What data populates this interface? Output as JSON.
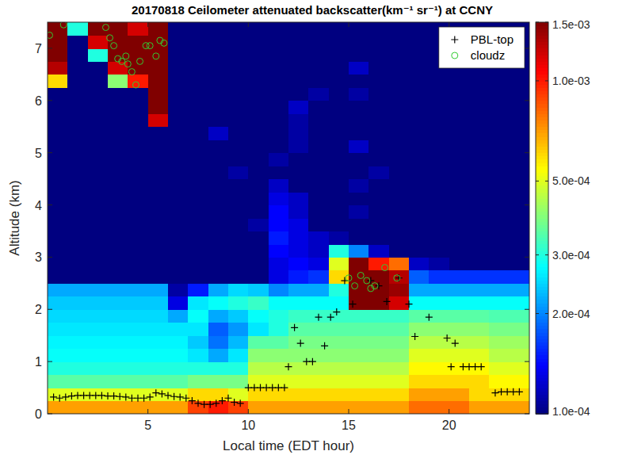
{
  "chart_data": {
    "type": "heatmap",
    "title": "20170818 Ceilometer attenuated backscatter(km⁻¹ sr⁻¹) at CCNY",
    "x_label": "Local time  (EDT hour)",
    "y_label": "Altitude (km)",
    "xlim": [
      0,
      24
    ],
    "ylim": [
      0,
      7.5
    ],
    "xticks": [
      5,
      10,
      15,
      20
    ],
    "yticks": [
      0,
      1,
      2,
      3,
      4,
      5,
      6,
      7
    ],
    "legend": "northeast",
    "x": [
      0.5,
      1.5,
      2.5,
      3.5,
      4.5,
      5.5,
      6.5,
      7.5,
      8.5,
      9.5,
      10.5,
      11.5,
      12.5,
      13.5,
      14.5,
      15.5,
      16.5,
      17.5,
      18.5,
      19.5,
      20.5,
      21.5,
      22.5,
      23.5
    ],
    "y": [
      0.125,
      0.375,
      0.625,
      0.875,
      1.125,
      1.375,
      1.625,
      1.875,
      2.125,
      2.375,
      2.625,
      2.875,
      3.125,
      3.375,
      3.625,
      3.875,
      4.125,
      4.375,
      4.625,
      4.875,
      5.125,
      5.375,
      5.625,
      5.875,
      6.125,
      6.375,
      6.625,
      6.875,
      7.125,
      7.375
    ],
    "color_range": [
      0.0001,
      0.0015
    ],
    "color_ticks": [
      {
        "value": 0.0001,
        "label": "1.0e-04"
      },
      {
        "value": 0.0002,
        "label": "2.0e-04"
      },
      {
        "value": 0.0003,
        "label": "3.0e-04"
      },
      {
        "value": 0.0005,
        "label": "5.0e-04"
      },
      {
        "value": 0.001,
        "label": "1.0e-03"
      },
      {
        "value": 0.0015,
        "label": "1.5e-03"
      }
    ],
    "cells": [
      [
        0.0007,
        0.0007,
        0.0007,
        0.0007,
        0.0007,
        0.0007,
        0.0007,
        0.0009,
        0.001,
        0.0009,
        0.0007,
        0.0007,
        0.0007,
        0.0007,
        0.0007,
        0.0007,
        0.0007,
        0.0007,
        0.0008,
        0.0008,
        0.0008,
        0.0007,
        0.0007,
        0.0007
      ],
      [
        0.0005,
        0.0005,
        0.0005,
        0.0005,
        0.0005,
        0.0005,
        0.0005,
        0.0006,
        0.0006,
        0.0005,
        0.0006,
        0.0006,
        0.0006,
        0.0006,
        0.0006,
        0.0006,
        0.0006,
        0.0006,
        0.0007,
        0.0007,
        0.0007,
        0.0006,
        0.0006,
        0.0006
      ],
      [
        0.00035,
        0.00035,
        0.00035,
        0.00035,
        0.00035,
        0.00035,
        0.00035,
        0.00038,
        0.00038,
        0.00038,
        0.0005,
        0.0005,
        0.0005,
        0.0005,
        0.0005,
        0.0005,
        0.0005,
        0.0005,
        0.0006,
        0.0006,
        0.0006,
        0.0006,
        0.00055,
        0.00055
      ],
      [
        0.0003,
        0.0003,
        0.0003,
        0.0003,
        0.0003,
        0.0003,
        0.0003,
        0.0003,
        0.0003,
        0.0003,
        0.00045,
        0.00045,
        0.00045,
        0.00045,
        0.00045,
        0.00045,
        0.00045,
        0.00045,
        0.00055,
        0.00055,
        0.00055,
        0.00055,
        0.0005,
        0.0005
      ],
      [
        0.00028,
        0.00028,
        0.00028,
        0.00028,
        0.00028,
        0.00028,
        0.00028,
        0.00026,
        0.00022,
        0.00026,
        0.0004,
        0.0004,
        0.0004,
        0.0004,
        0.0004,
        0.0004,
        0.0004,
        0.0004,
        0.0005,
        0.0005,
        0.0005,
        0.0005,
        0.00045,
        0.00045
      ],
      [
        0.00027,
        0.00027,
        0.00027,
        0.00027,
        0.00027,
        0.00027,
        0.00027,
        0.00024,
        0.00019,
        0.00023,
        0.00035,
        0.00035,
        0.00038,
        0.00038,
        0.00038,
        0.00038,
        0.00038,
        0.00038,
        0.00045,
        0.00045,
        0.00045,
        0.00045,
        0.00042,
        0.00042
      ],
      [
        0.00026,
        0.00026,
        0.00026,
        0.00026,
        0.00026,
        0.00026,
        0.00026,
        0.00026,
        0.00018,
        0.00021,
        0.00026,
        0.0003,
        0.00035,
        0.00035,
        0.00035,
        0.00035,
        0.00035,
        0.00035,
        0.0004,
        0.0004,
        0.0004,
        0.0004,
        0.00038,
        0.00038
      ],
      [
        0.00025,
        0.00025,
        0.00025,
        0.00025,
        0.00025,
        0.00025,
        0.00022,
        0.00028,
        0.00022,
        0.00024,
        0.00028,
        0.0003,
        0.00032,
        0.00032,
        0.00032,
        0.00032,
        0.00032,
        0.00032,
        0.00035,
        0.00035,
        0.00035,
        0.00035,
        0.00034,
        0.00034
      ],
      [
        0.00024,
        0.00024,
        0.00024,
        0.00024,
        0.00024,
        0.00024,
        0.00013,
        0.00026,
        0.00028,
        0.0003,
        0.00032,
        0.00028,
        0.00028,
        0.00028,
        0.00028,
        0.0015,
        0.0015,
        0.0012,
        0.00028,
        0.00028,
        0.00028,
        0.00028,
        0.00028,
        0.00028
      ],
      [
        0.00022,
        0.00022,
        0.00022,
        0.00022,
        0.00022,
        0.00022,
        0.00011,
        0.00015,
        0.00022,
        0.00025,
        0.00024,
        0.0002,
        0.00022,
        0.00022,
        0.0003,
        0.0015,
        0.0015,
        0.0014,
        0.00022,
        0.00022,
        0.00022,
        0.00022,
        0.00022,
        0.00022
      ],
      [
        0.0001,
        0.0001,
        0.0001,
        0.0001,
        0.0001,
        0.0001,
        0.0001,
        0.0001,
        0.0001,
        0.0001,
        0.0001,
        0.00013,
        0.00015,
        0.00016,
        0.0006,
        0.0015,
        0.0015,
        0.0013,
        0.00018,
        0.00016,
        0.00016,
        0.00016,
        0.00016,
        0.00016
      ],
      [
        0.0001,
        0.0001,
        0.0001,
        0.0001,
        0.0001,
        0.0001,
        0.0001,
        0.0001,
        0.0001,
        0.0001,
        0.0001,
        0.00013,
        0.00014,
        0.00013,
        0.0005,
        0.0015,
        0.001,
        0.0008,
        0.00012,
        0.00011,
        0.0001,
        0.0001,
        0.0001,
        0.0001
      ],
      [
        0.0001,
        0.0001,
        0.0001,
        0.0001,
        0.0001,
        0.0001,
        0.0001,
        0.0001,
        0.0001,
        0.0001,
        0.0001,
        0.00014,
        0.00013,
        0.00012,
        0.0003,
        0.0002,
        0.00012,
        0.0001,
        0.0001,
        0.0001,
        0.0001,
        0.0001,
        0.0001,
        0.0001
      ],
      [
        0.0001,
        0.0001,
        0.0001,
        0.0001,
        0.0001,
        0.0001,
        0.0001,
        0.0001,
        0.0001,
        0.0001,
        0.0001,
        0.00015,
        0.00013,
        0.00012,
        0.00011,
        0.0001,
        0.0001,
        0.0001,
        0.0001,
        0.0001,
        0.0001,
        0.0001,
        0.0001,
        0.0001
      ],
      [
        0.0001,
        0.0001,
        0.0001,
        0.0001,
        0.0001,
        0.0001,
        0.0001,
        0.0001,
        0.0001,
        0.0001,
        0.00011,
        0.00014,
        0.00013,
        0.0001,
        0.0001,
        0.0001,
        0.0001,
        0.0001,
        0.0001,
        0.0001,
        0.0001,
        0.0001,
        0.0001,
        0.0001
      ],
      [
        0.0001,
        0.0001,
        0.0001,
        0.0001,
        0.0001,
        0.0001,
        0.0001,
        0.0001,
        0.0001,
        0.0001,
        0.0001,
        0.00014,
        0.00012,
        0.0001,
        0.0001,
        0.00011,
        0.0001,
        0.0001,
        0.0001,
        0.0001,
        0.0001,
        0.0001,
        0.0001,
        0.0001
      ],
      [
        0.0001,
        0.0001,
        0.0001,
        0.0001,
        0.0001,
        0.0001,
        0.0001,
        0.0001,
        0.0001,
        0.0001,
        0.0001,
        0.00013,
        0.00012,
        0.0001,
        0.0001,
        0.0001,
        0.0001,
        0.0001,
        0.0001,
        0.0001,
        0.0001,
        0.0001,
        0.0001,
        0.0001
      ],
      [
        0.0001,
        0.0001,
        0.0001,
        0.0001,
        0.0001,
        0.0001,
        0.0001,
        0.0001,
        0.0001,
        0.0001,
        0.0001,
        0.00012,
        0.0001,
        0.0001,
        0.0001,
        0.00011,
        0.0001,
        0.0001,
        0.0001,
        0.0001,
        0.0001,
        0.0001,
        0.0001,
        0.0001
      ],
      [
        0.0001,
        0.0001,
        0.0001,
        0.0001,
        0.0001,
        0.0001,
        0.0001,
        0.0001,
        0.0001,
        0.00011,
        0.0001,
        0.0001,
        0.0001,
        0.0001,
        0.0001,
        0.0001,
        0.00011,
        0.0001,
        0.0001,
        0.0001,
        0.0001,
        0.0001,
        0.0001,
        0.0001
      ],
      [
        0.0001,
        0.0001,
        0.0001,
        0.0001,
        0.0001,
        0.0001,
        0.0001,
        0.0001,
        0.0001,
        0.0001,
        0.0001,
        0.00011,
        0.0001,
        0.0001,
        0.0001,
        0.0001,
        0.0001,
        0.0001,
        0.0001,
        0.0001,
        0.0001,
        0.0001,
        0.0001,
        0.0001
      ],
      [
        0.0001,
        0.0001,
        0.0001,
        0.0001,
        0.0001,
        0.0001,
        0.0001,
        0.0001,
        0.0001,
        0.0001,
        0.0001,
        0.0001,
        0.00011,
        0.0001,
        0.0001,
        0.00012,
        0.0001,
        0.0001,
        0.0001,
        0.0001,
        0.0001,
        0.0001,
        0.0001,
        0.0001
      ],
      [
        0.0001,
        0.0001,
        0.0001,
        0.0001,
        0.0001,
        0.0001,
        0.0001,
        0.0001,
        0.00012,
        0.0001,
        0.0001,
        0.0001,
        0.00011,
        0.0001,
        0.0001,
        0.0001,
        0.0001,
        0.0001,
        0.0001,
        0.0001,
        0.0001,
        0.0001,
        0.0001,
        0.0001
      ],
      [
        0.0001,
        0.0001,
        0.0001,
        0.0001,
        0.0001,
        0.0012,
        0.0001,
        0.0001,
        0.0001,
        0.0001,
        0.0001,
        0.0001,
        0.00011,
        0.0001,
        0.0001,
        0.0001,
        0.0001,
        0.0001,
        0.0001,
        0.0001,
        0.0001,
        0.0001,
        0.0001,
        0.0001
      ],
      [
        0.0001,
        0.0001,
        0.0001,
        0.0001,
        0.0001,
        0.0015,
        0.0001,
        0.0001,
        0.0001,
        0.0001,
        0.0001,
        0.0001,
        0.00012,
        0.0001,
        0.0001,
        0.0001,
        0.0001,
        0.0001,
        0.0001,
        0.0001,
        0.0001,
        0.0001,
        0.0001,
        0.0001
      ],
      [
        0.0001,
        0.0001,
        0.0001,
        0.0001,
        0.0001,
        0.0015,
        0.0001,
        0.0001,
        0.0001,
        0.0001,
        0.0001,
        0.0001,
        0.0001,
        0.00011,
        0.0001,
        0.00011,
        0.0001,
        0.0001,
        0.0001,
        0.0001,
        0.0001,
        0.0001,
        0.0001,
        0.0001
      ],
      [
        0.0006,
        0.0001,
        0.0001,
        0.0004,
        0.001,
        0.0015,
        0.0001,
        0.0001,
        0.0001,
        0.0001,
        0.0001,
        0.0001,
        0.0001,
        0.0001,
        0.0001,
        0.0001,
        0.0001,
        0.0001,
        0.0001,
        0.0001,
        0.0001,
        0.0001,
        0.0001,
        0.0001
      ],
      [
        0.0013,
        0.0001,
        0.0001,
        0.0012,
        0.0015,
        0.0015,
        0.0001,
        0.0001,
        0.0001,
        0.0001,
        0.0001,
        0.0001,
        0.0001,
        0.0001,
        0.0001,
        0.00012,
        0.0001,
        0.0001,
        0.0001,
        0.0001,
        0.0001,
        0.0001,
        0.0001,
        0.0001
      ],
      [
        0.0015,
        0.0001,
        0.0003,
        0.0015,
        0.0015,
        0.0015,
        0.0001,
        0.0001,
        0.0001,
        0.0001,
        0.0001,
        0.0001,
        0.0001,
        0.0001,
        0.0001,
        0.0001,
        0.0001,
        0.0001,
        0.0001,
        0.0001,
        0.0001,
        0.0001,
        0.0001,
        0.0001
      ],
      [
        0.0015,
        0.0001,
        0.0012,
        0.0015,
        0.0015,
        0.0015,
        0.0001,
        0.0001,
        0.0001,
        0.0001,
        0.0001,
        0.0001,
        0.0001,
        0.0001,
        0.0001,
        0.0001,
        0.0001,
        0.0001,
        0.0001,
        0.0001,
        0.0001,
        0.0001,
        0.0001,
        0.0001
      ],
      [
        0.0015,
        0.0003,
        0.0015,
        0.0015,
        0.0012,
        0.0015,
        0.0001,
        0.0001,
        0.0001,
        0.0001,
        0.0001,
        0.0001,
        0.0001,
        0.0001,
        0.0001,
        0.0001,
        0.0001,
        0.0001,
        0.0001,
        0.0001,
        0.0001,
        0.0001,
        0.0001,
        0.0001
      ]
    ],
    "series": [
      {
        "name": "PBL-top",
        "type": "scatter",
        "marker": "plus",
        "color": "#000000",
        "x": [
          0.3,
          0.6,
          0.9,
          1.2,
          1.5,
          1.8,
          2.1,
          2.4,
          2.7,
          3.0,
          3.3,
          3.6,
          3.9,
          4.2,
          4.5,
          4.8,
          5.1,
          5.4,
          5.7,
          6.0,
          6.3,
          6.6,
          6.9,
          7.2,
          7.5,
          7.8,
          8.1,
          8.4,
          8.7,
          9.0,
          9.3,
          9.6,
          10.0,
          10.3,
          10.6,
          10.9,
          11.2,
          11.5,
          11.8,
          12.0,
          12.3,
          12.6,
          12.9,
          13.2,
          13.5,
          13.8,
          14.1,
          14.4,
          14.8,
          15.2,
          16.1,
          16.5,
          16.9,
          17.5,
          18.0,
          18.3,
          19.0,
          19.9,
          20.1,
          20.3,
          20.7,
          21.0,
          21.3,
          21.6,
          22.3,
          22.6,
          22.9,
          23.2,
          23.5
        ],
        "values": [
          0.32,
          0.3,
          0.32,
          0.34,
          0.35,
          0.35,
          0.35,
          0.35,
          0.35,
          0.34,
          0.34,
          0.33,
          0.32,
          0.3,
          0.3,
          0.3,
          0.32,
          0.4,
          0.38,
          0.35,
          0.33,
          0.32,
          0.3,
          0.25,
          0.2,
          0.18,
          0.18,
          0.2,
          0.25,
          0.3,
          0.22,
          0.2,
          0.5,
          0.5,
          0.5,
          0.5,
          0.5,
          0.5,
          0.5,
          0.9,
          1.65,
          1.35,
          1.0,
          1.0,
          1.85,
          1.3,
          1.85,
          1.95,
          2.55,
          2.1,
          2.55,
          2.45,
          2.15,
          2.6,
          2.1,
          1.48,
          1.85,
          1.45,
          0.9,
          1.35,
          0.9,
          0.9,
          0.9,
          0.9,
          0.4,
          0.42,
          0.42,
          0.42,
          0.42
        ]
      },
      {
        "name": "cloudz",
        "type": "scatter",
        "marker": "circle",
        "color": "#33cc33",
        "x": [
          0.1,
          0.8,
          2.9,
          3.1,
          3.3,
          3.5,
          3.7,
          3.9,
          4.0,
          4.2,
          4.4,
          4.6,
          4.9,
          5.1,
          5.4,
          5.6,
          5.8,
          15.0,
          15.3,
          15.6,
          15.9,
          16.1,
          16.3,
          16.8,
          17.4
        ],
        "values": [
          7.25,
          7.45,
          7.4,
          7.2,
          7.05,
          6.8,
          6.75,
          6.85,
          6.7,
          6.55,
          6.3,
          6.75,
          7.05,
          7.05,
          6.85,
          7.15,
          7.1,
          2.6,
          2.45,
          2.65,
          2.55,
          2.4,
          2.45,
          2.8,
          2.6
        ]
      }
    ]
  }
}
